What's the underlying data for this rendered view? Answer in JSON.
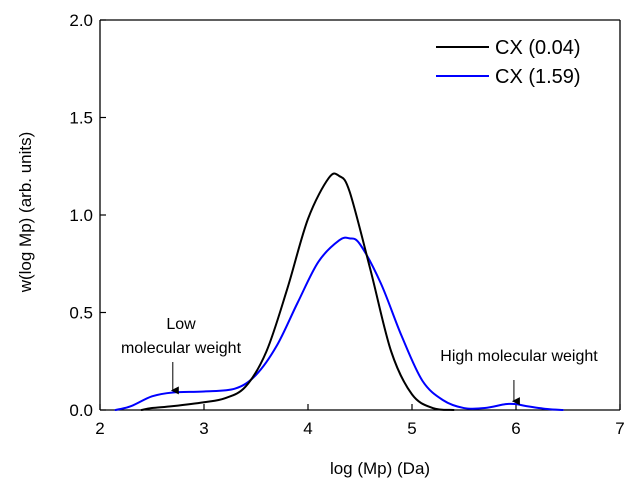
{
  "chart_data": {
    "type": "line",
    "title": "",
    "xlabel": "log (Mp) (Da)",
    "ylabel": "w(log Mp) (arb. units)",
    "xlim": [
      2,
      7
    ],
    "ylim": [
      0,
      2.0
    ],
    "xticks": [
      2,
      3,
      4,
      5,
      6,
      7
    ],
    "yticks": [
      0.0,
      0.5,
      1.0,
      1.5,
      2.0
    ],
    "xtick_labels": [
      "2",
      "3",
      "4",
      "5",
      "6",
      "7"
    ],
    "ytick_labels": [
      "0.0",
      "0.5",
      "1.0",
      "1.5",
      "2.0"
    ],
    "grid": false,
    "legend_position": "top-right",
    "series": [
      {
        "name": "CX (0.04)",
        "color": "#000000",
        "x": [
          2.4,
          2.5,
          2.7,
          3.0,
          3.2,
          3.4,
          3.6,
          3.8,
          4.0,
          4.2,
          4.3,
          4.4,
          4.6,
          4.8,
          5.0,
          5.2,
          5.4
        ],
        "y": [
          0.0,
          0.01,
          0.02,
          0.04,
          0.06,
          0.12,
          0.3,
          0.62,
          0.98,
          1.19,
          1.2,
          1.12,
          0.72,
          0.3,
          0.08,
          0.01,
          0.0
        ]
      },
      {
        "name": "CX (1.59)",
        "color": "#0000ff",
        "x": [
          2.15,
          2.3,
          2.5,
          2.7,
          3.0,
          3.3,
          3.5,
          3.7,
          3.9,
          4.1,
          4.3,
          4.4,
          4.5,
          4.7,
          4.9,
          5.1,
          5.3,
          5.5,
          5.7,
          5.9,
          6.0,
          6.1,
          6.3,
          6.45
        ],
        "y": [
          0.0,
          0.02,
          0.07,
          0.09,
          0.095,
          0.11,
          0.18,
          0.33,
          0.55,
          0.76,
          0.87,
          0.88,
          0.85,
          0.65,
          0.38,
          0.15,
          0.05,
          0.01,
          0.01,
          0.03,
          0.03,
          0.02,
          0.005,
          0.0
        ]
      }
    ],
    "annotations": [
      {
        "id": "low",
        "lines": [
          "Low",
          "molecular weight"
        ],
        "x": 2.7,
        "y": 0.085,
        "arrow": true
      },
      {
        "id": "high",
        "lines": [
          "High molecular weight"
        ],
        "x": 5.98,
        "y": 0.03,
        "arrow": true
      }
    ]
  }
}
